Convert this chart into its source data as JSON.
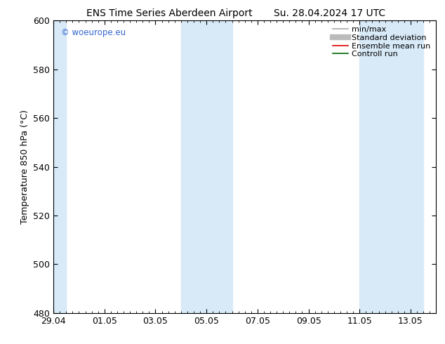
{
  "title_left": "ENS Time Series Aberdeen Airport",
  "title_right": "Su. 28.04.2024 17 UTC",
  "ylabel": "Temperature 850 hPa (°C)",
  "ylim": [
    480,
    600
  ],
  "yticks": [
    480,
    500,
    520,
    540,
    560,
    580,
    600
  ],
  "xlim": [
    0,
    15
  ],
  "xtick_labels": [
    "29.04",
    "01.05",
    "03.05",
    "05.05",
    "07.05",
    "09.05",
    "11.05",
    "13.05"
  ],
  "xtick_positions": [
    0,
    2,
    4,
    6,
    8,
    10,
    12,
    14
  ],
  "shaded_bands": [
    {
      "x_start": -0.1,
      "x_end": 0.5
    },
    {
      "x_start": 5.0,
      "x_end": 7.0
    },
    {
      "x_start": 12.0,
      "x_end": 14.5
    }
  ],
  "band_color": "#d8eaf8",
  "legend_items": [
    {
      "label": "min/max",
      "color": "#aaaaaa",
      "lw": 1.2
    },
    {
      "label": "Standard deviation",
      "color": "#bbbbbb",
      "lw": 5
    },
    {
      "label": "Ensemble mean run",
      "color": "#dd0000",
      "lw": 1.2
    },
    {
      "label": "Controll run",
      "color": "#006600",
      "lw": 1.2
    }
  ],
  "watermark": "© woeurope.eu",
  "watermark_color": "#3366cc",
  "background_color": "#ffffff",
  "title_fontsize": 10,
  "axis_label_fontsize": 9,
  "tick_fontsize": 9,
  "legend_fontsize": 8
}
